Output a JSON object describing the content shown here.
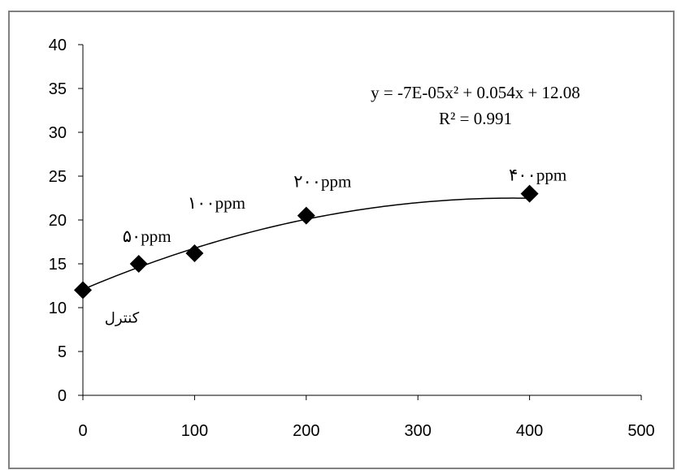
{
  "chart_data": {
    "type": "scatter",
    "xlim": [
      0,
      500
    ],
    "ylim": [
      0,
      40
    ],
    "x_ticks": [
      0,
      100,
      200,
      300,
      400,
      500
    ],
    "y_ticks": [
      0,
      5,
      10,
      15,
      20,
      25,
      30,
      35,
      40
    ],
    "grid": false,
    "legend": "none",
    "marker": "diamond",
    "marker_color": "#000000",
    "trendline": {
      "kind": "polynomial-2",
      "a": -7e-05,
      "b": 0.054,
      "c": 12.08,
      "x_range": [
        0,
        400
      ]
    },
    "equation_text": "y = -7E-05x² + 0.054x + 12.08",
    "r2_text": "R² = 0.991",
    "points": [
      {
        "x": 0,
        "y": 12.0,
        "label": "کنترل"
      },
      {
        "x": 50,
        "y": 15.0,
        "label": "۵۰ppm"
      },
      {
        "x": 100,
        "y": 16.2,
        "label": "۱۰۰ppm"
      },
      {
        "x": 200,
        "y": 20.5,
        "label": "۲۰۰ppm"
      },
      {
        "x": 400,
        "y": 23.0,
        "label": "۴۰۰ppm"
      }
    ]
  }
}
